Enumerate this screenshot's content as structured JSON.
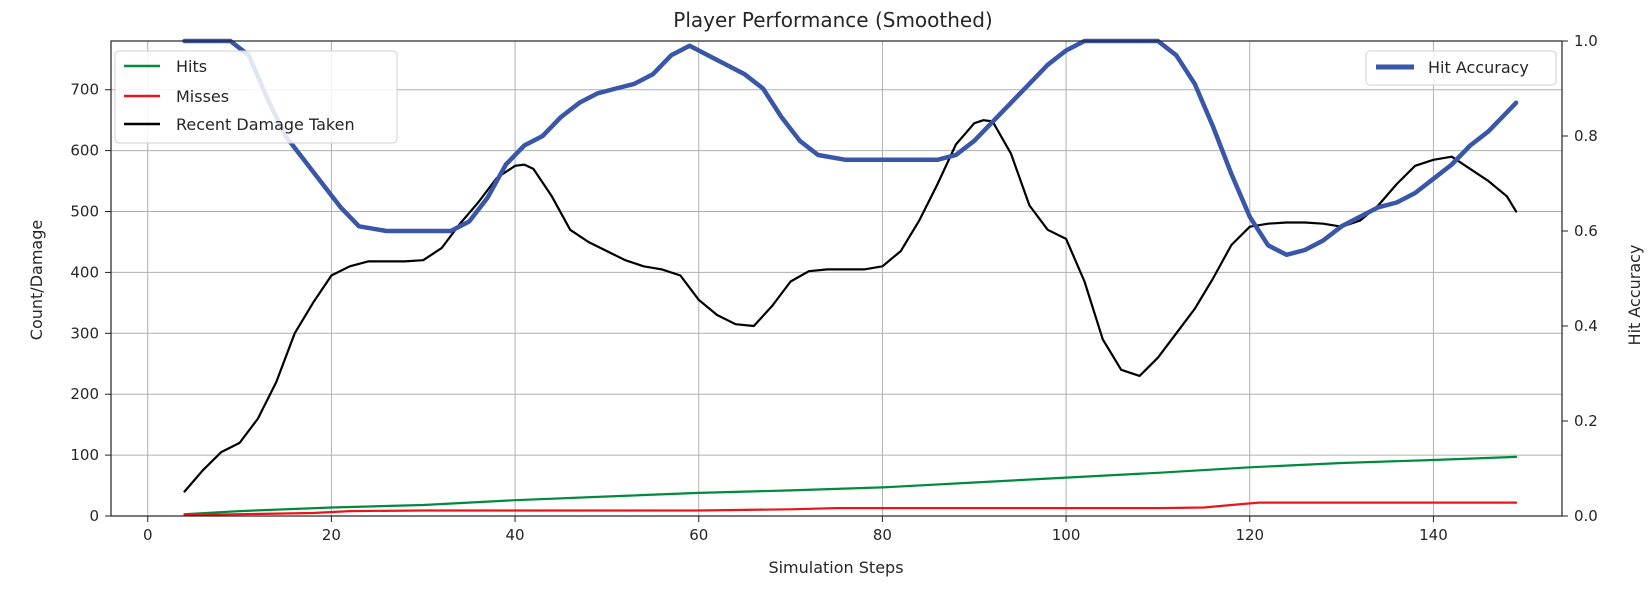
{
  "chart_data": {
    "type": "line",
    "title": "Player Performance (Smoothed)",
    "xlabel": "Simulation Steps",
    "ylabel": "Count/Damage",
    "y2label": "Hit Accuracy",
    "xlim": [
      -4,
      154
    ],
    "ylim": [
      0,
      780
    ],
    "y2lim": [
      0,
      1.0
    ],
    "xticks": [
      0,
      20,
      40,
      60,
      80,
      100,
      120,
      140
    ],
    "yticks": [
      0,
      100,
      200,
      300,
      400,
      500,
      600,
      700
    ],
    "y2ticks": [
      0.0,
      0.2,
      0.4,
      0.6,
      0.8,
      1.0
    ],
    "y2tick_labels": [
      "0.0",
      "0.2",
      "0.4",
      "0.6",
      "0.8",
      "1.0"
    ],
    "grid": true,
    "legend_left": "top-left",
    "legend_right": "top-right",
    "series": [
      {
        "name": "Hits",
        "color": "#008a3e",
        "axis": "left",
        "x": [
          4,
          10,
          20,
          30,
          40,
          50,
          60,
          70,
          80,
          90,
          100,
          110,
          120,
          130,
          140,
          149
        ],
        "y": [
          3,
          8,
          14,
          18,
          26,
          32,
          38,
          42,
          47,
          55,
          63,
          71,
          80,
          87,
          92,
          97
        ]
      },
      {
        "name": "Misses",
        "color": "#e8161b",
        "axis": "left",
        "x": [
          4,
          10,
          18,
          22,
          30,
          40,
          50,
          60,
          65,
          70,
          75,
          80,
          90,
          100,
          110,
          115,
          118,
          121,
          130,
          140,
          149
        ],
        "y": [
          2,
          3,
          5,
          8,
          9,
          9,
          9,
          9,
          10,
          11,
          13,
          13,
          13,
          13,
          13,
          14,
          18,
          22,
          22,
          22,
          22
        ]
      },
      {
        "name": "Recent Damage Taken",
        "color": "#000000",
        "axis": "left",
        "x": [
          4,
          6,
          8,
          10,
          12,
          14,
          16,
          18,
          20,
          22,
          24,
          26,
          28,
          30,
          32,
          34,
          36,
          38,
          40,
          41,
          42,
          44,
          46,
          48,
          50,
          52,
          54,
          56,
          58,
          60,
          62,
          64,
          66,
          68,
          70,
          72,
          74,
          76,
          78,
          80,
          82,
          84,
          86,
          88,
          90,
          91,
          92,
          94,
          96,
          98,
          100,
          102,
          104,
          106,
          108,
          110,
          112,
          114,
          116,
          118,
          120,
          122,
          124,
          126,
          128,
          130,
          132,
          134,
          136,
          138,
          140,
          142,
          144,
          146,
          148,
          149
        ],
        "y": [
          40,
          75,
          105,
          120,
          160,
          220,
          300,
          350,
          395,
          410,
          418,
          418,
          418,
          420,
          440,
          480,
          515,
          555,
          575,
          577,
          570,
          525,
          470,
          450,
          435,
          420,
          410,
          405,
          395,
          355,
          330,
          315,
          312,
          345,
          385,
          402,
          405,
          405,
          405,
          410,
          435,
          485,
          545,
          610,
          645,
          650,
          648,
          595,
          510,
          470,
          455,
          385,
          290,
          240,
          230,
          260,
          300,
          340,
          390,
          445,
          475,
          480,
          482,
          482,
          480,
          475,
          485,
          510,
          545,
          575,
          585,
          590,
          570,
          550,
          525,
          500
        ]
      },
      {
        "name": "Hit Accuracy",
        "color": "#3a56a8",
        "axis": "right",
        "x": [
          4,
          7,
          9,
          11,
          13,
          15,
          17,
          19,
          21,
          23,
          26,
          30,
          33,
          35,
          37,
          39,
          41,
          43,
          45,
          47,
          49,
          51,
          53,
          55,
          57,
          59,
          61,
          63,
          65,
          67,
          69,
          71,
          73,
          76,
          80,
          86,
          88,
          90,
          92,
          94,
          96,
          98,
          100,
          102,
          104,
          106,
          108,
          110,
          112,
          114,
          116,
          118,
          120,
          122,
          124,
          126,
          128,
          130,
          132,
          134,
          136,
          138,
          140,
          142,
          144,
          146,
          148,
          149
        ],
        "y": [
          1.0,
          1.0,
          1.0,
          0.97,
          0.88,
          0.8,
          0.75,
          0.7,
          0.65,
          0.61,
          0.6,
          0.6,
          0.6,
          0.62,
          0.67,
          0.74,
          0.78,
          0.8,
          0.84,
          0.87,
          0.89,
          0.9,
          0.91,
          0.93,
          0.97,
          0.99,
          0.97,
          0.95,
          0.93,
          0.9,
          0.84,
          0.79,
          0.76,
          0.75,
          0.75,
          0.75,
          0.76,
          0.79,
          0.83,
          0.87,
          0.91,
          0.95,
          0.98,
          1.0,
          1.0,
          1.0,
          1.0,
          1.0,
          0.97,
          0.91,
          0.82,
          0.72,
          0.63,
          0.57,
          0.55,
          0.56,
          0.58,
          0.61,
          0.63,
          0.65,
          0.66,
          0.68,
          0.71,
          0.74,
          0.78,
          0.81,
          0.85,
          0.87
        ]
      }
    ]
  }
}
